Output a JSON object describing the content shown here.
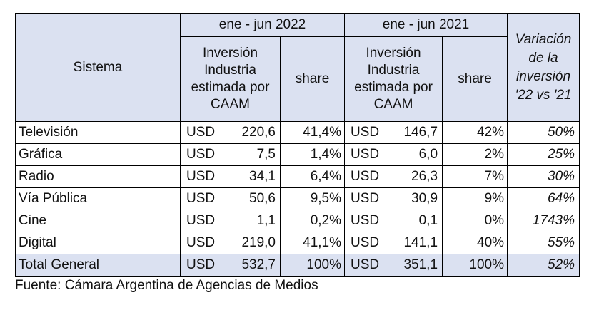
{
  "headers": {
    "sistema": "Sistema",
    "period_2022": "ene - jun 2022",
    "period_2021": "ene - jun 2021",
    "inversion": "Inversión Industria estimada por CAAM",
    "share": "share",
    "variacion": "Variación de la inversión '22 vs '21"
  },
  "rows": [
    {
      "sistema": "Televisión",
      "cur22": "USD",
      "amt22": "220,6",
      "sh22": "41,4%",
      "cur21": "USD",
      "amt21": "146,7",
      "sh21": "42%",
      "var": "50%"
    },
    {
      "sistema": "Gráfica",
      "cur22": "USD",
      "amt22": "7,5",
      "sh22": "1,4%",
      "cur21": "USD",
      "amt21": "6,0",
      "sh21": "2%",
      "var": "25%"
    },
    {
      "sistema": "Radio",
      "cur22": "USD",
      "amt22": "34,1",
      "sh22": "6,4%",
      "cur21": "USD",
      "amt21": "26,3",
      "sh21": "7%",
      "var": "30%"
    },
    {
      "sistema": "Vía Pública",
      "cur22": "USD",
      "amt22": "50,6",
      "sh22": "9,5%",
      "cur21": "USD",
      "amt21": "30,9",
      "sh21": "9%",
      "var": "64%"
    },
    {
      "sistema": "Cine",
      "cur22": "USD",
      "amt22": "1,1",
      "sh22": "0,2%",
      "cur21": "USD",
      "amt21": "0,1",
      "sh21": "0%",
      "var": "1743%"
    },
    {
      "sistema": "Digital",
      "cur22": "USD",
      "amt22": "219,0",
      "sh22": "41,1%",
      "cur21": "USD",
      "amt21": "141,1",
      "sh21": "40%",
      "var": "55%"
    }
  ],
  "total": {
    "sistema": "Total General",
    "cur22": "USD",
    "amt22": "532,7",
    "sh22": "100%",
    "cur21": "USD",
    "amt21": "351,1",
    "sh21": "100%",
    "var": "52%"
  },
  "source": "Fuente: Cámara Argentina de Agencias de Medios",
  "colors": {
    "header_bg": "#dbe1f1"
  }
}
